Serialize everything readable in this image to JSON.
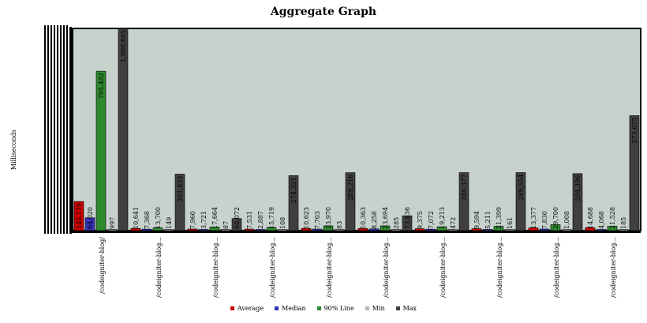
{
  "chart_data": {
    "type": "bar",
    "title": "Aggregate Graph",
    "xlabel": "",
    "ylabel": "Milliseconds",
    "ylim": [
      0,
      1008665
    ],
    "grid": false,
    "legend_position": "bottom",
    "categories": [
      "/codeigniter-blog/",
      "/codeigniter-blog...",
      "/codeigniter-blog...",
      "/codeigniter-blog...",
      "/codeigniter-blog...",
      "/codeigniter-blog...",
      "/codeigniter-blog...",
      "/codeigniter-blog...",
      "/codeigniter-blog...",
      "/codeigniter-blog..."
    ],
    "series": [
      {
        "name": "Average",
        "color": "#cc0000",
        "values": [
          145179,
          10641,
          7960,
          7531,
          10623,
          10363,
          9375,
          9594,
          13377,
          14688
        ],
        "labels": [
          "145,179",
          "10,641",
          "7,960",
          "7,531",
          "10,623",
          "10,363",
          "9,375",
          "9,594",
          "13,377",
          "14,688"
        ]
      },
      {
        "name": "Median",
        "color": "#3333bb",
        "values": [
          64020,
          7368,
          3721,
          2887,
          7703,
          8258,
          7072,
          5211,
          7830,
          4068
        ],
        "labels": [
          "64,020",
          "7,368",
          "3,721",
          "2,887",
          "7,703",
          "8,258",
          "7,072",
          "5,211",
          "7,830",
          "4,068"
        ]
      },
      {
        "name": "90% Line",
        "color": "#2f8a2f",
        "values": [
          795482,
          13700,
          17664,
          15719,
          23970,
          23694,
          19213,
          21399,
          29700,
          21528
        ],
        "labels": [
          "795,482",
          "13,700",
          "17,664",
          "15,719",
          "23,970",
          "23,694",
          "19,213",
          "21,399",
          "29,700",
          "21,528"
        ]
      },
      {
        "name": "Min",
        "color": "#b8b8b8",
        "values": [
          997,
          149,
          87,
          108,
          83,
          285,
          472,
          161,
          1008,
          185
        ],
        "labels": [
          "997",
          "149",
          "87",
          "108",
          "83",
          "285",
          "472",
          "161",
          "1,008",
          "185"
        ]
      },
      {
        "name": "Max",
        "color": "#404040",
        "values": [
          1008665,
          281832,
          60072,
          274321,
          289216,
          73836,
          289377,
          289554,
          284396,
          573675
        ],
        "labels": [
          "1,008,665",
          "281,832",
          "60,072",
          "274,321",
          "289,216",
          "73,836",
          "289,377",
          "289,554",
          "284,396",
          "573,675"
        ]
      }
    ]
  }
}
